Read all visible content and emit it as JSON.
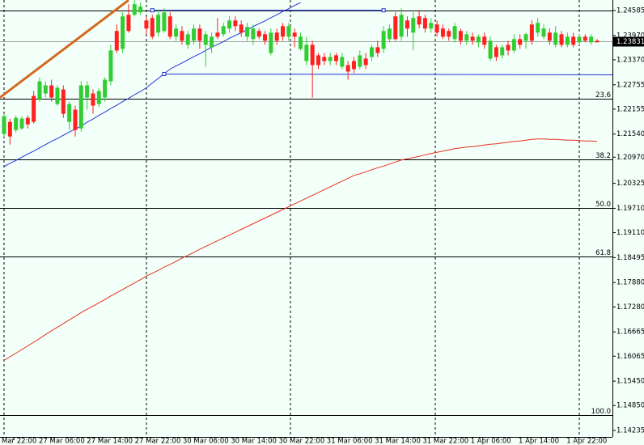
{
  "chart_data": {
    "type": "candlestick",
    "ylim": [
      1.14076,
      1.24844
    ],
    "yticks": [
      1.24585,
      {
        "value": 1.2397,
        "label": "1.23970"
      },
      {
        "value": 1.2337,
        "label": "1.23370"
      },
      1.22755,
      1.22155,
      {
        "value": 1.2154,
        "label": "1.21540"
      },
      {
        "value": 1.2097,
        "label": "1.20970"
      },
      1.20325,
      {
        "value": 1.1971,
        "label": "1.19710"
      },
      {
        "value": 1.1911,
        "label": "1.19110"
      },
      1.18495,
      {
        "value": 1.1788,
        "label": "1.17880"
      },
      {
        "value": 1.1728,
        "label": "1.17280"
      },
      1.16665,
      1.16065,
      {
        "value": 1.1545,
        "label": "1.15450"
      },
      {
        "value": 1.1485,
        "label": "1.14850"
      },
      1.14235
    ],
    "x_labels": [
      "Mar 22:00",
      "27 Mar 06:00",
      "27 Mar 14:00",
      "27 Mar 22:00",
      "30 Mar 06:00",
      "30 Mar 14:00",
      "30 Mar 22:00",
      "31 Mar 06:00",
      "31 Mar 14:00",
      "31 Mar 22:00",
      "1 Apr 06:00",
      "1 Apr 14:00",
      "1 Apr 22:00"
    ],
    "up_color": "#32cd32",
    "down_color": "#ff2020",
    "current_price": 1.23831,
    "open": [
      1.2154,
      1.2184,
      1.2164,
      1.2168,
      1.2194,
      1.2248,
      1.224,
      1.2254,
      1.2274,
      1.2228,
      1.2264,
      1.2184,
      1.2214,
      1.2168,
      1.2244,
      1.2254,
      1.2228,
      1.2244,
      1.2284,
      1.2408,
      1.2364,
      1.2448,
      1.2448,
      1.2454,
      1.2434,
      1.244,
      1.2404,
      1.2408,
      1.2444,
      1.2394,
      1.2408,
      1.2374,
      1.2384,
      1.2414,
      1.2374,
      1.2368,
      1.2404,
      1.24,
      1.2414,
      1.2434,
      1.2424,
      1.2394,
      1.2388,
      1.2408,
      1.24,
      1.2354,
      1.2404,
      1.242,
      1.2394,
      1.2404,
      1.2364,
      1.2334,
      1.2374,
      1.2348,
      1.2344,
      1.2334,
      1.2348,
      1.232,
      1.2324,
      1.2334,
      1.232,
      1.234,
      1.2344,
      1.2368,
      1.2364,
      1.2388,
      1.2444,
      1.2394,
      1.2434,
      1.2404,
      1.2444,
      1.244,
      1.2414,
      1.2424,
      1.2414,
      1.2408,
      1.2388,
      1.2408,
      1.2384,
      1.2394,
      1.238,
      1.2394,
      1.234,
      1.2368,
      1.2348,
      1.2374,
      1.236,
      1.2388,
      1.2384,
      1.2424,
      1.2404,
      1.2394,
      1.2404,
      1.2374,
      1.24,
      1.2374,
      1.2394,
      1.238,
      1.2394,
      1.238,
      1.2384
    ],
    "high": [
      1.2204,
      1.2192,
      1.22,
      1.2198,
      1.22,
      1.226,
      1.2294,
      1.2284,
      1.2288,
      1.2274,
      1.2274,
      1.2234,
      1.2224,
      1.2284,
      1.2284,
      1.2264,
      1.2268,
      1.2294,
      1.2374,
      1.2424,
      1.2454,
      1.2474,
      1.2484,
      1.2478,
      1.2444,
      1.2448,
      1.246,
      1.2464,
      1.2454,
      1.2424,
      1.242,
      1.2408,
      1.2424,
      1.2424,
      1.2408,
      1.2404,
      1.244,
      1.2428,
      1.2444,
      1.2444,
      1.2434,
      1.2428,
      1.2424,
      1.2414,
      1.2408,
      1.2414,
      1.2414,
      1.2428,
      1.2428,
      1.2414,
      1.2404,
      1.2394,
      1.2384,
      1.2354,
      1.2354,
      1.2354,
      1.2354,
      1.2354,
      1.2334,
      1.2344,
      1.236,
      1.2354,
      1.2374,
      1.2384,
      1.242,
      1.2424,
      1.2454,
      1.2464,
      1.2444,
      1.2454,
      1.246,
      1.2448,
      1.244,
      1.2434,
      1.2424,
      1.2414,
      1.2428,
      1.2414,
      1.2408,
      1.2404,
      1.24,
      1.2404,
      1.2394,
      1.2374,
      1.2374,
      1.2384,
      1.24,
      1.24,
      1.2404,
      1.2434,
      1.244,
      1.2424,
      1.2414,
      1.242,
      1.2408,
      1.2404,
      1.2404,
      1.24,
      1.24,
      1.24,
      1.2388
    ],
    "low": [
      1.2148,
      1.2128,
      1.2158,
      1.2164,
      1.2168,
      1.218,
      1.2234,
      1.2244,
      1.2234,
      1.2224,
      1.2194,
      1.2164,
      1.2148,
      1.216,
      1.2214,
      1.2204,
      1.222,
      1.2234,
      1.2274,
      1.2354,
      1.2354,
      1.2404,
      1.2444,
      1.2448,
      1.24,
      1.2388,
      1.2394,
      1.2404,
      1.2388,
      1.2384,
      1.2374,
      1.2364,
      1.2374,
      1.2364,
      1.232,
      1.2354,
      1.2388,
      1.2394,
      1.2404,
      1.2408,
      1.2394,
      1.2384,
      1.2374,
      1.2388,
      1.2374,
      1.2348,
      1.2374,
      1.2384,
      1.2384,
      1.2368,
      1.236,
      1.2324,
      1.2244,
      1.2314,
      1.2324,
      1.2324,
      1.2324,
      1.2314,
      1.2288,
      1.2304,
      1.2314,
      1.2314,
      1.2334,
      1.2344,
      1.2354,
      1.238,
      1.2384,
      1.2384,
      1.2394,
      1.236,
      1.2414,
      1.2404,
      1.2404,
      1.2394,
      1.2388,
      1.2384,
      1.238,
      1.2374,
      1.2374,
      1.2374,
      1.2368,
      1.2364,
      1.2334,
      1.2334,
      1.234,
      1.2348,
      1.2354,
      1.2364,
      1.2364,
      1.2374,
      1.2394,
      1.2388,
      1.2374,
      1.2368,
      1.2368,
      1.2368,
      1.2368,
      1.2374,
      1.238,
      1.2374,
      1.238
    ],
    "close": [
      1.2198,
      1.2148,
      1.2194,
      1.2192,
      1.2178,
      1.2184,
      1.2284,
      1.2274,
      1.2244,
      1.2268,
      1.2204,
      1.2228,
      1.2164,
      1.2274,
      1.2274,
      1.2224,
      1.226,
      1.2288,
      1.236,
      1.236,
      1.2444,
      1.2408,
      1.2474,
      1.2468,
      1.2414,
      1.2394,
      1.2448,
      1.2454,
      1.2394,
      1.2414,
      1.2384,
      1.24,
      1.2414,
      1.2384,
      1.24,
      1.2394,
      1.2394,
      1.242,
      1.2434,
      1.242,
      1.2404,
      1.2418,
      1.2414,
      1.2394,
      1.2384,
      1.2404,
      1.2384,
      1.2394,
      1.242,
      1.2394,
      1.2394,
      1.2374,
      1.2324,
      1.2324,
      1.2334,
      1.2344,
      1.2334,
      1.2344,
      1.2308,
      1.2314,
      1.2348,
      1.2324,
      1.2368,
      1.2354,
      1.2408,
      1.2414,
      1.2388,
      1.2448,
      1.2414,
      1.244,
      1.2424,
      1.2414,
      1.2428,
      1.2404,
      1.2394,
      1.2394,
      1.242,
      1.2384,
      1.24,
      1.2384,
      1.2394,
      1.2374,
      1.2384,
      1.2344,
      1.2368,
      1.236,
      1.2388,
      1.2374,
      1.24,
      1.2384,
      1.2428,
      1.2414,
      1.2384,
      1.2404,
      1.2374,
      1.2394,
      1.2374,
      1.2394,
      1.2384,
      1.2394,
      1.238
    ],
    "overlays": [
      {
        "color": "#e8301c",
        "values": [
          1.1596,
          1.1605,
          1.1614,
          1.1623,
          1.1632,
          1.1641,
          1.165,
          1.166,
          1.1669,
          1.1678,
          1.1687,
          1.1696,
          1.1705,
          1.1714,
          1.1722,
          1.173,
          1.1738,
          1.1746,
          1.1755,
          1.1763,
          1.1771,
          1.1779,
          1.1787,
          1.1795,
          1.1804,
          1.1811,
          1.1818,
          1.1826,
          1.1833,
          1.184,
          1.1848,
          1.1855,
          1.1862,
          1.187,
          1.1877,
          1.1884,
          1.1891,
          1.1898,
          1.1905,
          1.1912,
          1.1919,
          1.1926,
          1.1933,
          1.194,
          1.1947,
          1.1954,
          1.1961,
          1.1968,
          1.1975,
          1.1982,
          1.1989,
          1.1996,
          1.2003,
          1.201,
          1.2017,
          1.2024,
          1.2031,
          1.2038,
          1.2045,
          1.2052,
          1.2056,
          1.2061,
          1.2066,
          1.2071,
          1.2075,
          1.208,
          1.2085,
          1.209,
          1.2093,
          1.2096,
          1.2099,
          1.2103,
          1.2106,
          1.2109,
          1.2112,
          1.2115,
          1.2118,
          1.212,
          1.2122,
          1.2123,
          1.2125,
          1.2127,
          1.2129,
          1.213,
          1.2132,
          1.2134,
          1.2136,
          1.2137,
          1.2139,
          1.2141,
          1.2142,
          1.2142,
          1.2141,
          1.2141,
          1.214,
          1.2139,
          1.2139,
          1.2138,
          1.2137,
          1.2137,
          1.2136
        ]
      },
      {
        "color": "#1f35d6",
        "values": [
          1.2074,
          1.2082,
          1.2089,
          1.2097,
          1.2105,
          1.2112,
          1.212,
          1.2128,
          1.2136,
          1.2143,
          1.2151,
          1.2159,
          1.2166,
          1.2174,
          1.2183,
          1.2191,
          1.22,
          1.2208,
          1.2217,
          1.2225,
          1.2234,
          1.2242,
          1.2251,
          1.2259,
          1.2268,
          1.228,
          1.2291,
          1.2303,
          1.2314,
          1.2322,
          1.2329,
          1.2337,
          1.2345,
          1.2352,
          1.236,
          1.2368,
          1.2375,
          1.2382,
          1.239,
          1.2397,
          1.2404,
          1.2411,
          1.2419,
          1.2426,
          1.2433,
          1.2441,
          1.2448,
          1.2456,
          1.2463,
          1.2471,
          1.2478,
          null,
          null,
          null,
          null,
          null,
          null,
          null,
          null,
          null,
          null,
          null,
          null,
          null,
          null,
          null,
          null,
          null,
          null,
          null,
          null,
          null,
          null,
          null,
          null,
          null,
          null,
          null,
          null,
          null,
          null,
          null,
          null,
          null,
          null,
          null,
          null,
          null,
          null,
          null,
          null,
          null,
          null,
          null,
          null,
          null,
          null,
          null,
          null,
          null,
          null
        ]
      }
    ],
    "segments": [
      {
        "color": "#d2691e",
        "width": 3,
        "x": [
          -0.7,
          21
        ],
        "y": [
          1.2244,
          1.2484
        ]
      },
      {
        "color": "#1f35d6",
        "width": 1,
        "x": [
          25,
          64
        ],
        "y": [
          1.2459,
          1.2459
        ]
      },
      {
        "color": "#1f35d6",
        "width": 1,
        "x": [
          27,
          103
        ],
        "y": [
          1.2302,
          1.23
        ]
      }
    ],
    "hlines": [
      {
        "color": "#000000",
        "value": 1.2458
      }
    ],
    "fibonacci": {
      "color": "#000000",
      "levels": [
        {
          "label": "23.6",
          "price": 1.2242
        },
        {
          "label": "38.2",
          "price": 1.2092
        },
        {
          "label": "50.0",
          "price": 1.1972
        },
        {
          "label": "61.8",
          "price": 1.1852
        },
        {
          "label": "100.0",
          "price": 1.1462
        }
      ]
    }
  }
}
